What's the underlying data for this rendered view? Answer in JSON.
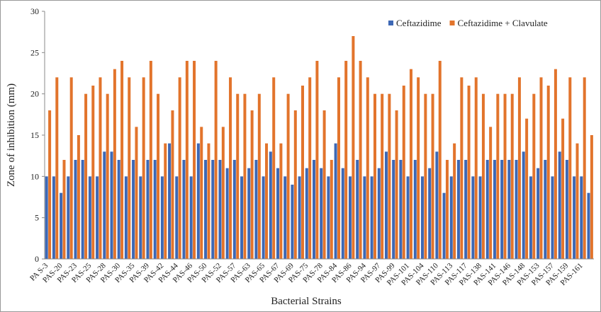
{
  "chart_data": {
    "type": "bar",
    "xlabel": "Bacterial Strains",
    "ylabel": "Zone of inhibition  (mm)",
    "categories": [
      "PA S-3",
      null,
      "PAS-20",
      null,
      "PAS-23",
      null,
      "PAS-25",
      null,
      "PAS-28",
      null,
      "PAS-30",
      null,
      "PAS-35",
      null,
      "PAS-39",
      null,
      "PAS-42",
      null,
      "PAS-44",
      null,
      "PAS-46",
      null,
      "PAS-50",
      null,
      "PAS-52",
      null,
      "PAS-57",
      null,
      "PAS-63",
      null,
      "PAS-65",
      null,
      "PAS-67",
      null,
      "PAS-69",
      null,
      "PAS-75",
      null,
      "PAS-78",
      null,
      "PAS-84",
      null,
      "PAS-86",
      null,
      "PAS-94",
      null,
      "PAS-97",
      null,
      "PAS-99",
      null,
      "PAS-101",
      null,
      "PAS-104",
      null,
      "PAS-110",
      null,
      "PAS-113",
      null,
      "PAS-117",
      null,
      "PAS-138",
      null,
      "PAS-141",
      null,
      "PAS-146",
      null,
      "PAS-148",
      null,
      "PAS-153",
      null,
      "PAS-157",
      null,
      "PAS-159",
      null,
      "PAS-161",
      null
    ],
    "series": [
      {
        "name": "Ceftazidime",
        "color": "#3d68b5",
        "values": [
          10,
          10,
          8,
          10,
          12,
          12,
          10,
          10,
          13,
          13,
          12,
          10,
          12,
          10,
          12,
          12,
          10,
          14,
          10,
          12,
          10,
          14,
          12,
          12,
          12,
          11,
          12,
          10,
          11,
          12,
          10,
          13,
          11,
          10,
          9,
          10,
          11,
          12,
          11,
          10,
          14,
          11,
          10,
          12,
          10,
          10,
          11,
          13,
          12,
          12,
          10,
          12,
          10,
          11,
          13,
          8,
          10,
          12,
          12,
          10,
          10,
          12,
          12,
          12,
          12,
          12,
          13,
          10,
          11,
          12,
          10,
          13,
          12,
          10,
          10,
          8
        ]
      },
      {
        "name": "Ceftazidime + Clavulate",
        "color": "#e2742c",
        "values": [
          18,
          22,
          12,
          22,
          15,
          20,
          21,
          22,
          20,
          23,
          24,
          22,
          16,
          22,
          24,
          20,
          14,
          18,
          22,
          24,
          24,
          16,
          14,
          24,
          16,
          22,
          20,
          20,
          18,
          20,
          14,
          22,
          14,
          20,
          18,
          21,
          22,
          24,
          18,
          12,
          22,
          24,
          27,
          24,
          22,
          20,
          20,
          20,
          18,
          21,
          23,
          22,
          20,
          20,
          24,
          12,
          14,
          22,
          21,
          22,
          20,
          16,
          20,
          20,
          20,
          22,
          17,
          20,
          22,
          21,
          23,
          17,
          22,
          14,
          22,
          15
        ]
      }
    ],
    "ylim": [
      0,
      30
    ],
    "yticks": [
      0,
      5,
      10,
      15,
      20,
      25,
      30
    ],
    "legend": "top-right"
  }
}
